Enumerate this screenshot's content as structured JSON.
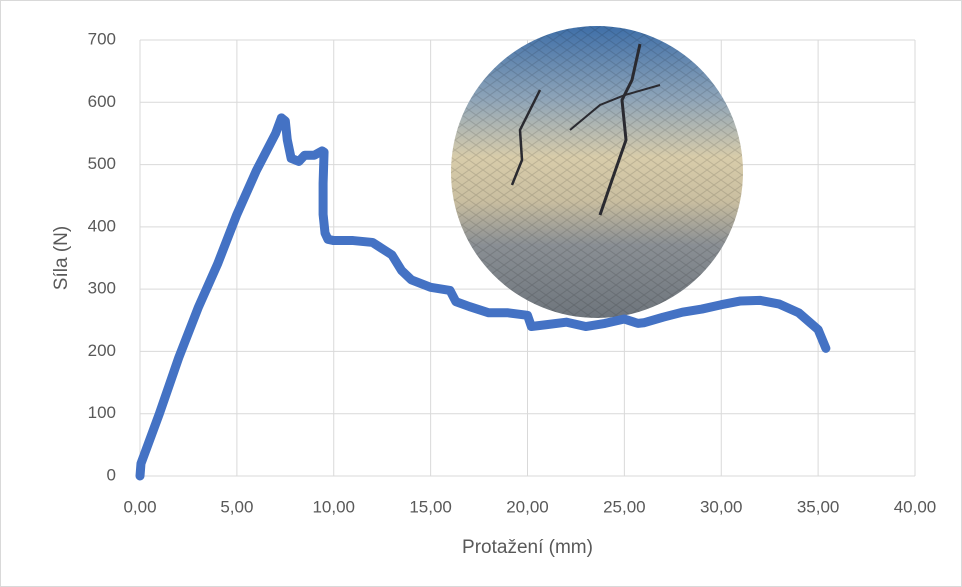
{
  "chart_data": {
    "type": "line",
    "x_label": "Protažení (mm)",
    "y_label": "Síla (N)",
    "xlim": [
      0,
      40
    ],
    "ylim": [
      0,
      700
    ],
    "xticks": [
      {
        "value": 0,
        "label": "0,00"
      },
      {
        "value": 5,
        "label": "5,00"
      },
      {
        "value": 10,
        "label": "10,00"
      },
      {
        "value": 15,
        "label": "15,00"
      },
      {
        "value": 20,
        "label": "20,00"
      },
      {
        "value": 25,
        "label": "25,00"
      },
      {
        "value": 30,
        "label": "30,00"
      },
      {
        "value": 35,
        "label": "35,00"
      },
      {
        "value": 40,
        "label": "40,00"
      }
    ],
    "yticks": [
      0,
      100,
      200,
      300,
      400,
      500,
      600,
      700
    ],
    "grid": true,
    "series": [
      {
        "color": "#4472c4",
        "x": [
          0,
          0.05,
          1,
          2,
          3,
          4,
          5,
          6,
          7,
          7.3,
          7.5,
          7.6,
          7.8,
          8.2,
          8.5,
          9,
          9.4,
          9.5,
          9.45,
          9.45,
          9.55,
          9.7,
          10,
          11,
          12,
          12.5,
          13,
          13.5,
          14,
          15,
          16,
          16.3,
          17,
          18,
          19,
          20,
          20.2,
          21,
          22,
          23,
          24,
          25,
          25.7,
          26,
          27,
          28,
          29,
          30,
          31,
          32,
          33,
          34,
          35,
          35.4
        ],
        "values": [
          0,
          20,
          100,
          190,
          270,
          340,
          420,
          490,
          550,
          575,
          570,
          540,
          510,
          505,
          515,
          515,
          522,
          520,
          470,
          420,
          390,
          380,
          378,
          378,
          375,
          365,
          355,
          330,
          315,
          303,
          298,
          280,
          272,
          262,
          262,
          258,
          240,
          243,
          247,
          240,
          245,
          252,
          245,
          246,
          255,
          263,
          268,
          275,
          281,
          282,
          276,
          262,
          235,
          205
        ]
      }
    ]
  }
}
